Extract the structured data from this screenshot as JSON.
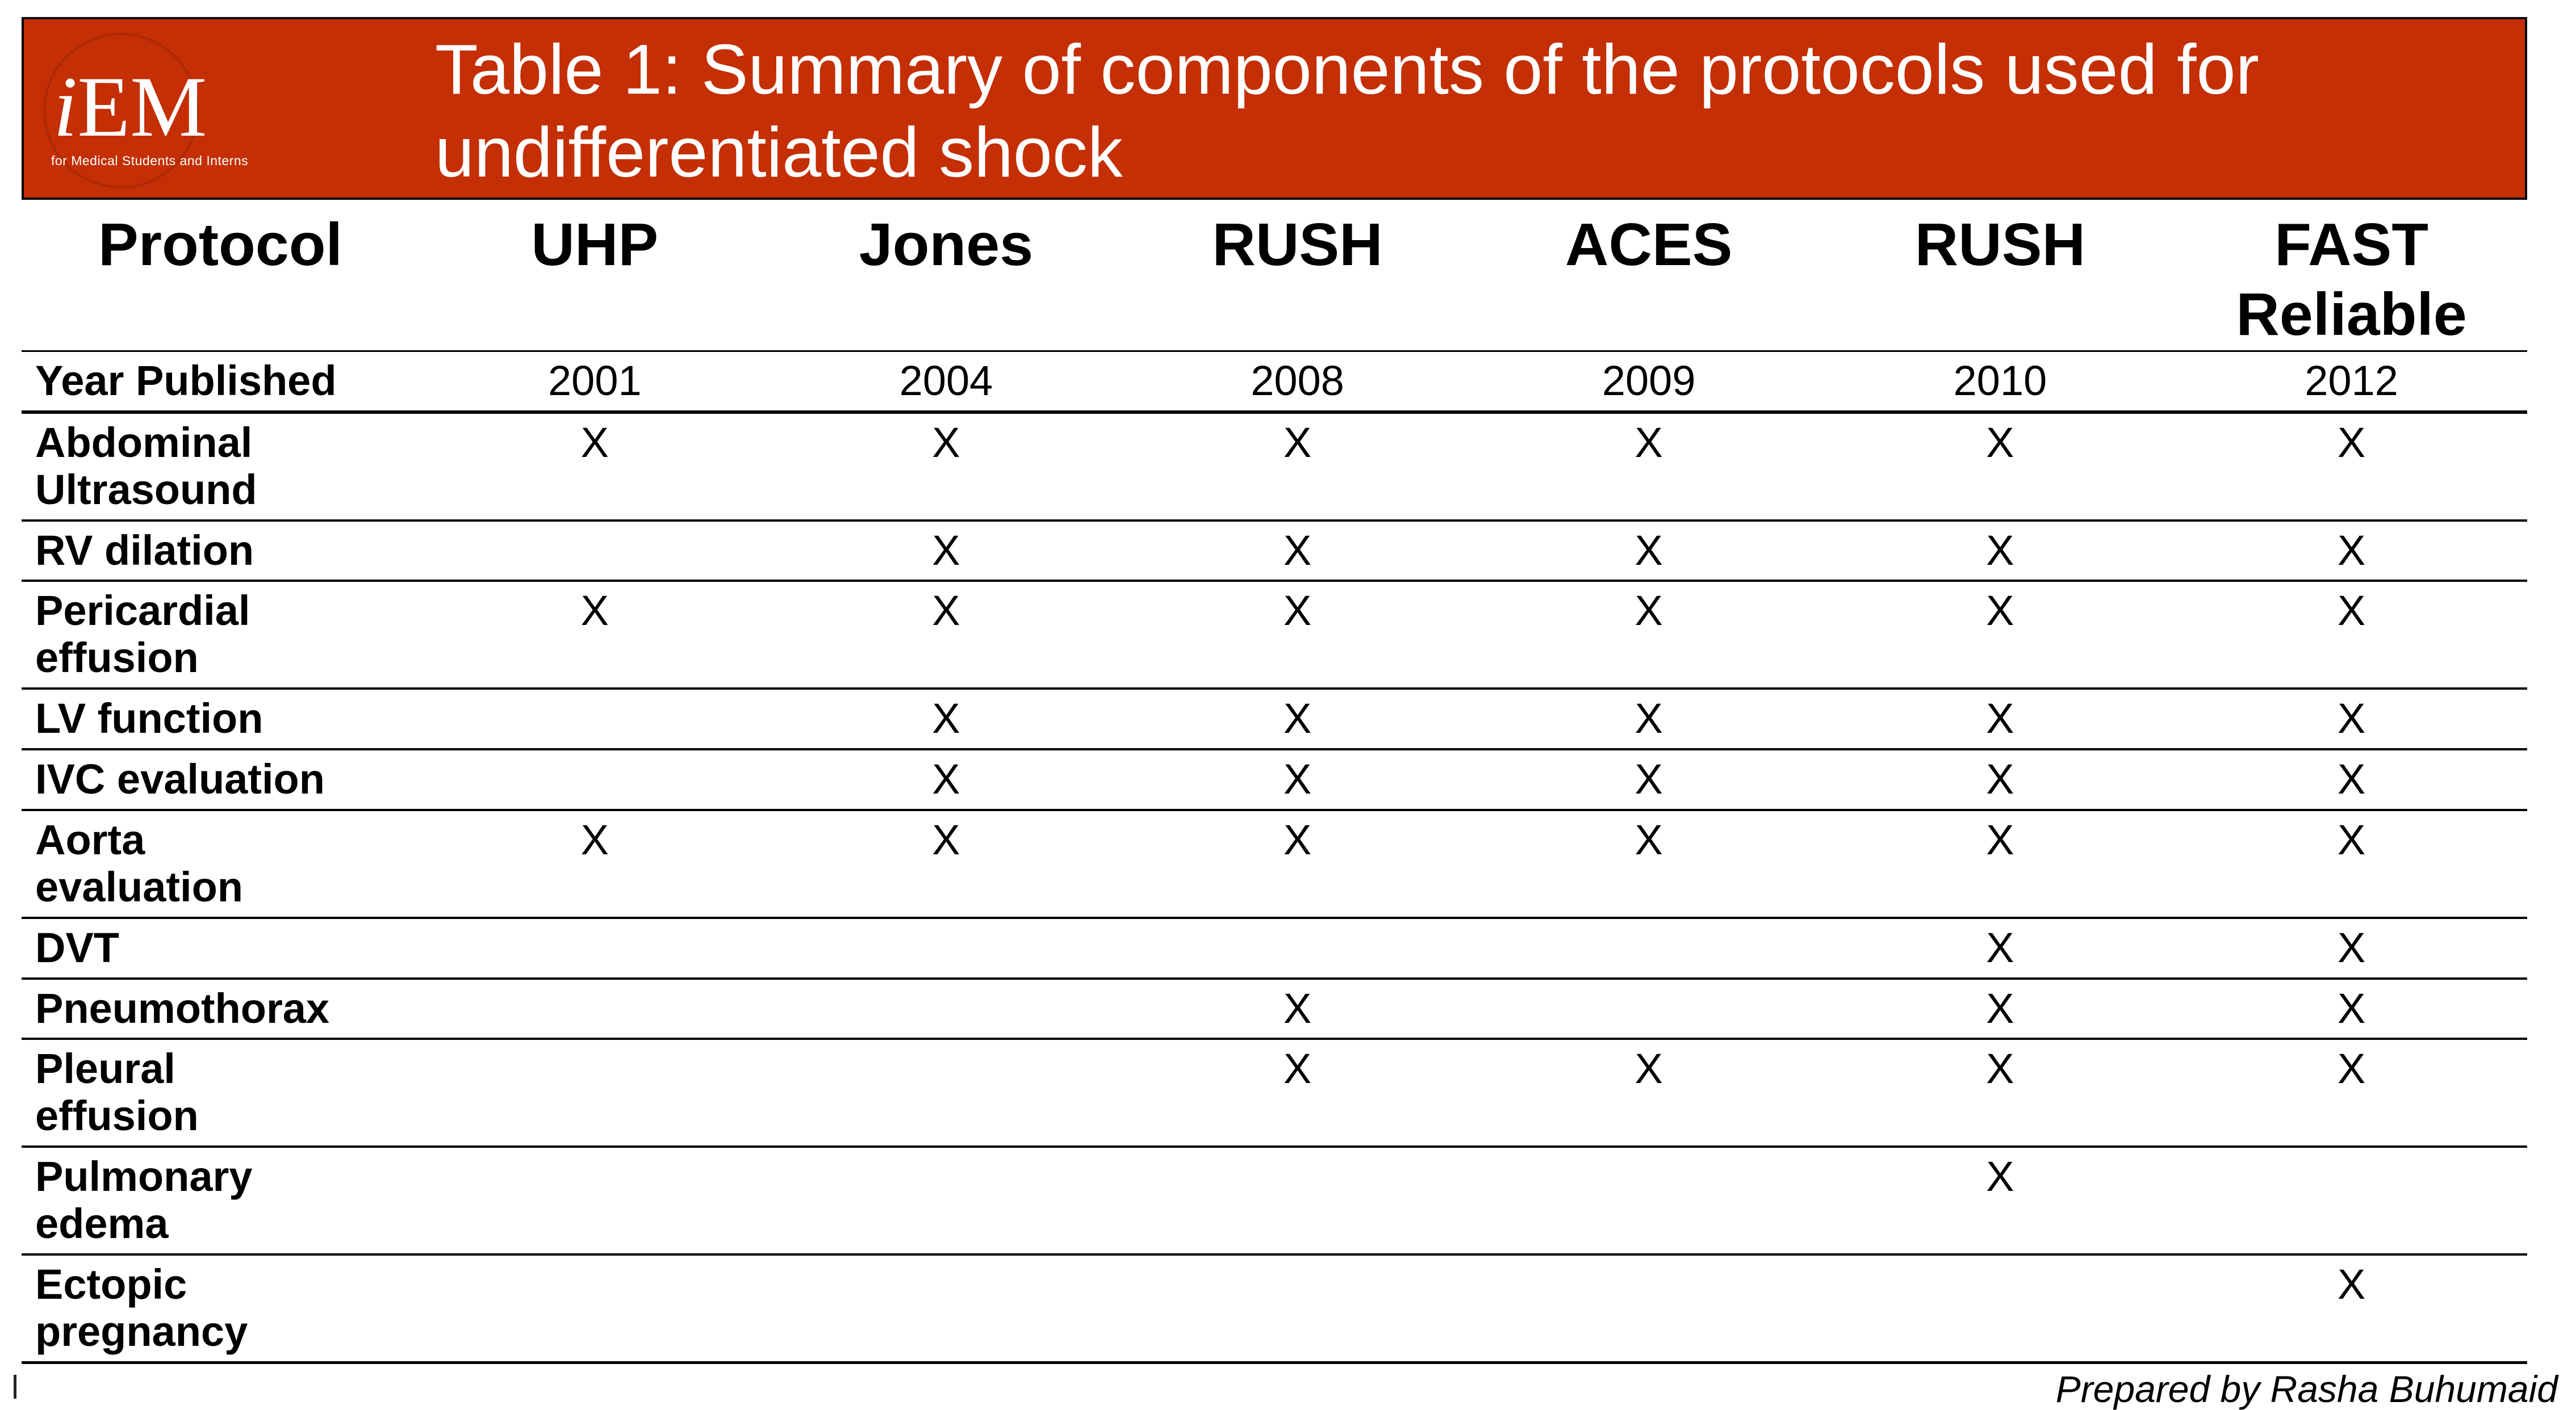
{
  "banner": {
    "bg_color": "#C42F05",
    "logo": {
      "i": "i",
      "em": "EM",
      "tagline": "for Medical Students and Interns"
    },
    "title": "Table 1: Summary of components of the protocols used for\nundifferentiated shock"
  },
  "table": {
    "columns": [
      "Protocol",
      "UHP",
      "Jones",
      "RUSH",
      "ACES",
      "RUSH",
      "FAST\nReliable"
    ],
    "rows": [
      {
        "label": "Year Published",
        "values": [
          "2001",
          "2004",
          "2008",
          "2009",
          "2010",
          "2012"
        ]
      },
      {
        "label": "Abdominal\nUltrasound",
        "values": [
          "X",
          "X",
          "X",
          "X",
          "X",
          "X"
        ]
      },
      {
        "label": "RV dilation",
        "values": [
          "",
          "X",
          "X",
          "X",
          "X",
          "X"
        ]
      },
      {
        "label": "Pericardial\neffusion",
        "values": [
          "X",
          "X",
          "X",
          "X",
          "X",
          "X"
        ]
      },
      {
        "label": "LV function",
        "values": [
          "",
          "X",
          "X",
          "X",
          "X",
          "X"
        ]
      },
      {
        "label": "IVC evaluation",
        "values": [
          "",
          "X",
          "X",
          "X",
          "X",
          "X"
        ]
      },
      {
        "label": "Aorta\nevaluation",
        "values": [
          "X",
          "X",
          "X",
          "X",
          "X",
          "X"
        ]
      },
      {
        "label": "DVT",
        "values": [
          "",
          "",
          "",
          "",
          "X",
          "X"
        ]
      },
      {
        "label": "Pneumothorax",
        "values": [
          "",
          "",
          "X",
          "",
          "X",
          "X"
        ]
      },
      {
        "label": "Pleural\neffusion",
        "values": [
          "",
          "",
          "X",
          "X",
          "X",
          "X"
        ]
      },
      {
        "label": "Pulmonary\nedema",
        "values": [
          "",
          "",
          "",
          "",
          "X",
          ""
        ]
      },
      {
        "label": "Ectopic\npregnancy",
        "values": [
          "",
          "",
          "",
          "",
          "",
          "X"
        ]
      }
    ]
  },
  "footer": {
    "credit": "Prepared by Rasha Buhumaid"
  }
}
